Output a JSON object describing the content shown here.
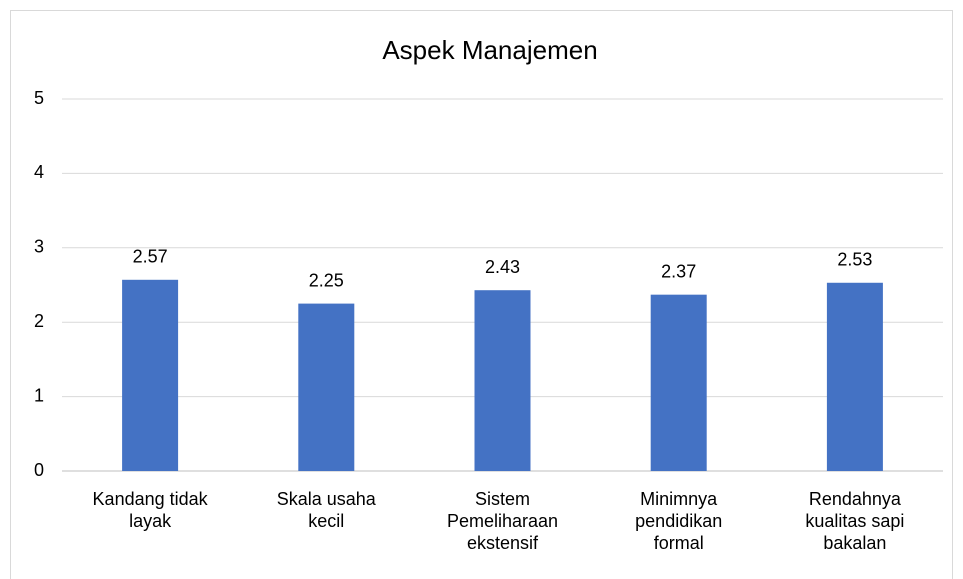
{
  "chart_data": {
    "type": "bar",
    "title": "Aspek Manajemen",
    "categories": [
      "Kandang tidak layak",
      "Skala usaha kecil",
      "Sistem Pemeliharaan ekstensif",
      "Minimnya pendidikan formal",
      "Rendahnya kualitas sapi bakalan"
    ],
    "values": [
      2.57,
      2.25,
      2.43,
      2.37,
      2.53
    ],
    "color": "#4472c4",
    "ylim": [
      0,
      5
    ],
    "yticks": [
      0,
      1,
      2,
      3,
      4,
      5
    ],
    "grid": true
  }
}
